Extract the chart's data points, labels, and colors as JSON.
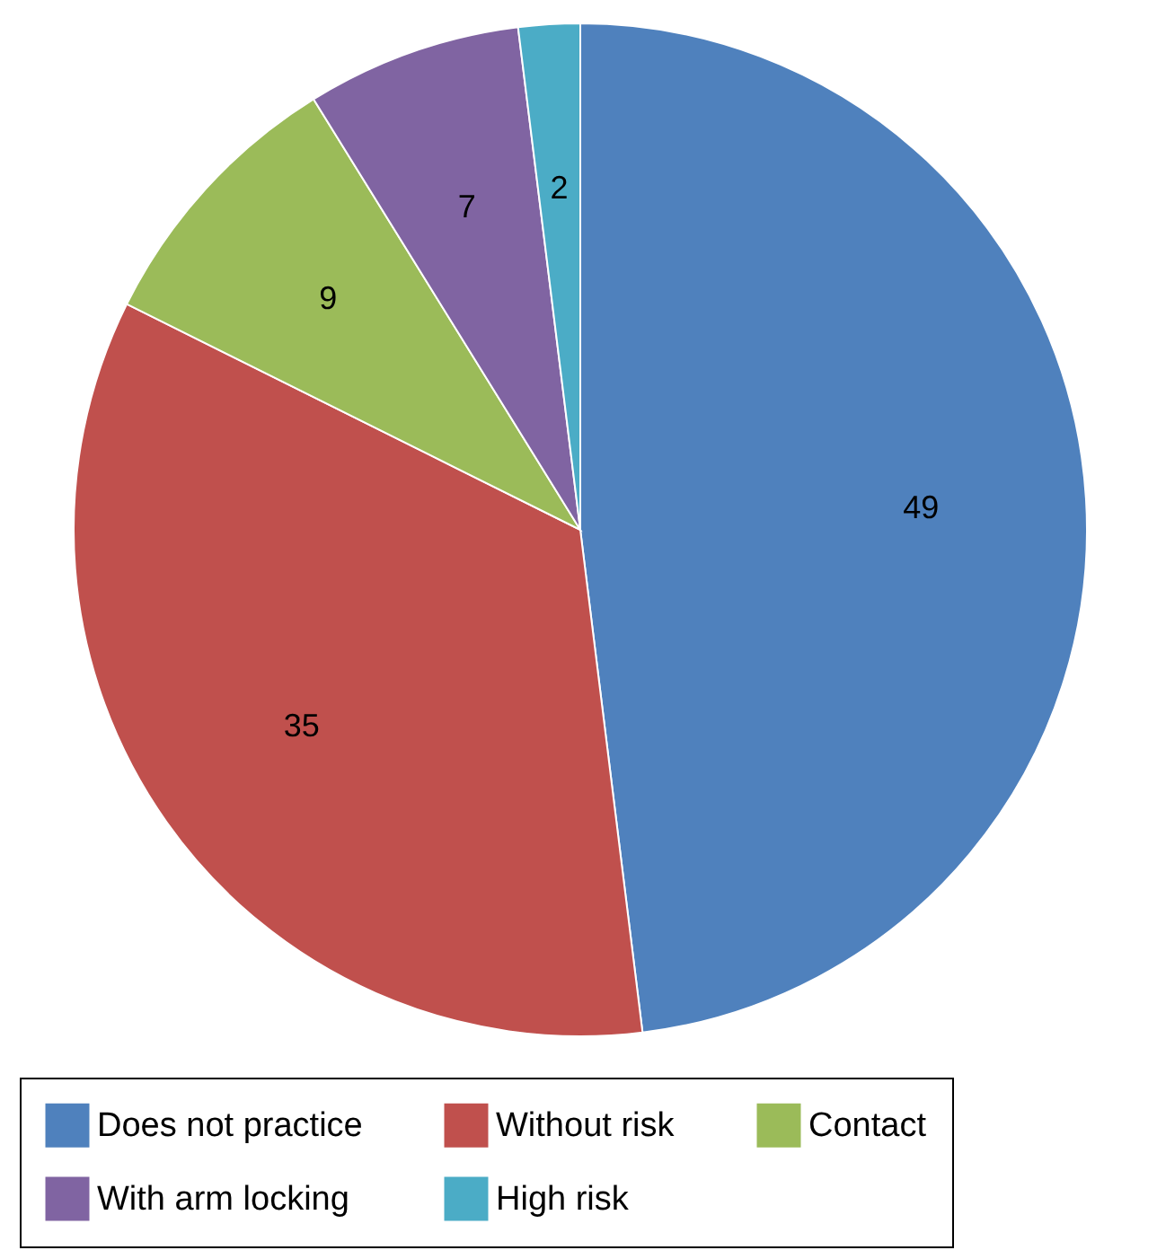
{
  "chart_data": {
    "type": "pie",
    "categories": [
      "Does not practice",
      "Without risk",
      "Contact",
      "With arm locking",
      "High risk"
    ],
    "values": [
      49,
      35,
      9,
      7,
      2
    ],
    "colors": [
      "#4f81bd",
      "#c0504d",
      "#9bbb59",
      "#8064a2",
      "#4bacc6"
    ],
    "data_labels": true,
    "legend": "bottom"
  }
}
